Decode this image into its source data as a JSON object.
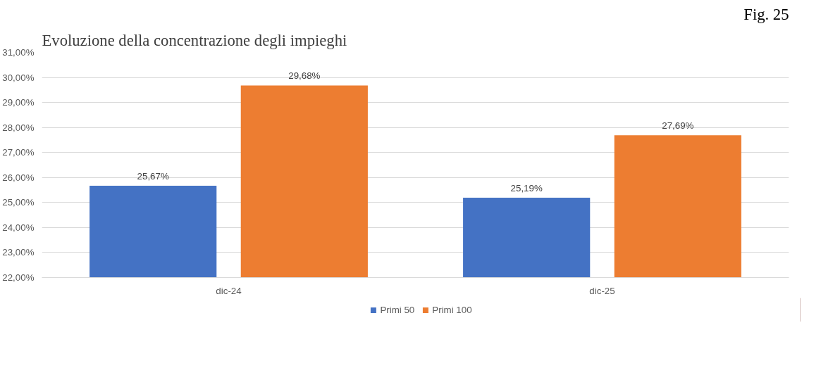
{
  "chart_data": {
    "type": "bar",
    "title": "Evoluzione della concentrazione degli impieghi",
    "annotations": [
      "Fig. 25"
    ],
    "categories": [
      "dic-24",
      "dic-25"
    ],
    "series": [
      {
        "name": "Primi 50",
        "color": "#4472c4",
        "values": [
          25.67,
          25.19
        ],
        "value_labels": [
          "25,67%",
          "25,19%"
        ]
      },
      {
        "name": "Primi 100",
        "color": "#ed7d31",
        "values": [
          29.68,
          27.69
        ],
        "value_labels": [
          "29,68%",
          "27,69%"
        ]
      }
    ],
    "ylim": [
      22,
      31
    ],
    "yticks": [
      {
        "value": 22,
        "label": "22,00%"
      },
      {
        "value": 23,
        "label": "23,00%"
      },
      {
        "value": 24,
        "label": "24,00%"
      },
      {
        "value": 25,
        "label": "25,00%"
      },
      {
        "value": 26,
        "label": "26,00%"
      },
      {
        "value": 27,
        "label": "27,00%"
      },
      {
        "value": 28,
        "label": "28,00%"
      },
      {
        "value": 29,
        "label": "29,00%"
      },
      {
        "value": 30,
        "label": "30,00%"
      },
      {
        "value": 31,
        "label": "31,00%"
      }
    ],
    "grid": "y",
    "legend": "bottom"
  }
}
